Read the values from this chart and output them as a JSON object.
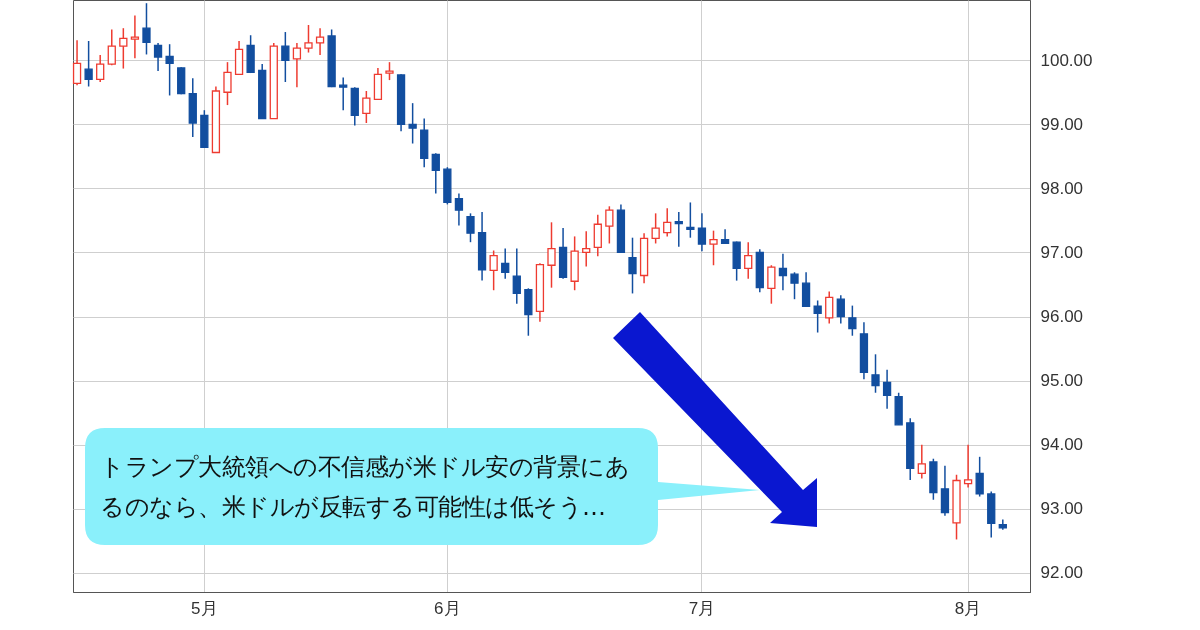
{
  "chart_data": {
    "type": "candlestick",
    "categories": [
      null,
      null,
      null,
      null,
      null,
      null,
      null,
      null,
      null,
      null,
      null,
      "5月",
      null,
      null,
      null,
      null,
      null,
      null,
      null,
      null,
      null,
      null,
      null,
      null,
      null,
      null,
      null,
      null,
      null,
      null,
      null,
      null,
      "6月",
      null,
      null,
      null,
      null,
      null,
      null,
      null,
      null,
      null,
      null,
      null,
      null,
      null,
      null,
      null,
      null,
      null,
      null,
      null,
      null,
      null,
      "7月",
      null,
      null,
      null,
      null,
      null,
      null,
      null,
      null,
      null,
      null,
      null,
      null,
      null,
      null,
      null,
      null,
      null,
      null,
      null,
      null,
      null,
      null,
      "8月",
      null,
      null,
      null
    ],
    "ohlc": [
      [
        99.64,
        100.31,
        99.61,
        99.95
      ],
      [
        99.86,
        100.3,
        99.59,
        99.7
      ],
      [
        99.7,
        100.08,
        99.66,
        99.94
      ],
      [
        99.94,
        100.48,
        99.92,
        100.22
      ],
      [
        100.22,
        100.5,
        99.87,
        100.34
      ],
      [
        100.33,
        100.7,
        100.03,
        100.36
      ],
      [
        100.5,
        100.89,
        100.09,
        100.28
      ],
      [
        100.23,
        100.27,
        99.83,
        100.05
      ],
      [
        100.06,
        100.25,
        99.45,
        99.95
      ],
      [
        99.88,
        99.89,
        99.47,
        99.48
      ],
      [
        99.48,
        99.72,
        98.8,
        99.02
      ],
      [
        99.14,
        99.22,
        98.63,
        98.64
      ],
      [
        98.56,
        99.59,
        98.56,
        99.52
      ],
      [
        99.5,
        99.97,
        99.3,
        99.81
      ],
      [
        99.78,
        100.3,
        99.77,
        100.17
      ],
      [
        100.23,
        100.39,
        99.8,
        99.81
      ],
      [
        99.84,
        99.94,
        99.09,
        99.09
      ],
      [
        99.09,
        100.27,
        99.09,
        100.22
      ],
      [
        100.22,
        100.44,
        99.66,
        100.0
      ],
      [
        100.02,
        100.27,
        99.58,
        100.19
      ],
      [
        100.19,
        100.55,
        100.12,
        100.27
      ],
      [
        100.27,
        100.5,
        100.08,
        100.36
      ],
      [
        100.38,
        100.48,
        99.58,
        99.59
      ],
      [
        99.61,
        99.73,
        99.22,
        99.58
      ],
      [
        99.56,
        99.58,
        98.98,
        99.14
      ],
      [
        99.17,
        99.52,
        99.02,
        99.41
      ],
      [
        99.39,
        99.88,
        99.38,
        99.78
      ],
      [
        99.8,
        99.97,
        99.69,
        99.83
      ],
      [
        99.77,
        99.78,
        98.89,
        99.0
      ],
      [
        99.0,
        99.33,
        98.7,
        98.94
      ],
      [
        98.91,
        99.09,
        98.33,
        98.47
      ],
      [
        98.53,
        98.55,
        97.92,
        98.28
      ],
      [
        98.3,
        98.33,
        97.75,
        97.78
      ],
      [
        97.84,
        97.92,
        97.42,
        97.66
      ],
      [
        97.56,
        97.61,
        97.16,
        97.3
      ],
      [
        97.31,
        97.63,
        96.56,
        96.73
      ],
      [
        96.72,
        97.03,
        96.41,
        96.95
      ],
      [
        96.83,
        97.06,
        96.59,
        96.69
      ],
      [
        96.63,
        97.06,
        96.2,
        96.36
      ],
      [
        96.42,
        96.44,
        95.7,
        96.03
      ],
      [
        96.08,
        96.83,
        95.92,
        96.81
      ],
      [
        96.8,
        97.47,
        96.45,
        97.06
      ],
      [
        97.08,
        97.38,
        96.59,
        96.61
      ],
      [
        96.55,
        97.25,
        96.41,
        97.02
      ],
      [
        97.0,
        97.33,
        96.78,
        97.06
      ],
      [
        97.08,
        97.59,
        96.94,
        97.44
      ],
      [
        97.41,
        97.72,
        97.14,
        97.66
      ],
      [
        97.66,
        97.75,
        97.0,
        97.0
      ],
      [
        96.92,
        97.23,
        96.36,
        96.67
      ],
      [
        96.64,
        97.3,
        96.52,
        97.22
      ],
      [
        97.22,
        97.61,
        97.14,
        97.38
      ],
      [
        97.31,
        97.69,
        97.25,
        97.47
      ],
      [
        97.48,
        97.63,
        97.09,
        97.45
      ],
      [
        97.39,
        97.78,
        97.23,
        97.36
      ],
      [
        97.38,
        97.61,
        97.02,
        97.13
      ],
      [
        97.13,
        97.34,
        96.8,
        97.2
      ],
      [
        97.2,
        97.36,
        97.14,
        97.14
      ],
      [
        97.16,
        97.17,
        96.56,
        96.75
      ],
      [
        96.75,
        97.16,
        96.59,
        96.95
      ],
      [
        97.0,
        97.05,
        96.38,
        96.45
      ],
      [
        96.44,
        96.8,
        96.2,
        96.77
      ],
      [
        96.75,
        96.98,
        96.41,
        96.64
      ],
      [
        96.66,
        96.69,
        96.27,
        96.52
      ],
      [
        96.52,
        96.69,
        96.16,
        96.16
      ],
      [
        96.16,
        96.25,
        95.75,
        96.05
      ],
      [
        95.98,
        96.39,
        95.89,
        96.3
      ],
      [
        96.27,
        96.33,
        95.89,
        96.0
      ],
      [
        95.98,
        96.17,
        95.7,
        95.81
      ],
      [
        95.73,
        95.91,
        95.02,
        95.13
      ],
      [
        95.09,
        95.41,
        94.81,
        94.92
      ],
      [
        94.97,
        95.17,
        94.56,
        94.77
      ],
      [
        94.75,
        94.81,
        94.31,
        94.31
      ],
      [
        94.34,
        94.41,
        93.45,
        93.63
      ],
      [
        93.55,
        94.0,
        93.47,
        93.7
      ],
      [
        93.73,
        93.78,
        93.14,
        93.25
      ],
      [
        93.31,
        93.67,
        92.89,
        92.94
      ],
      [
        92.78,
        93.53,
        92.52,
        93.44
      ],
      [
        93.39,
        94.0,
        93.33,
        93.45
      ],
      [
        93.55,
        93.81,
        93.19,
        93.23
      ],
      [
        93.23,
        93.27,
        92.55,
        92.77
      ],
      [
        92.75,
        92.83,
        92.67,
        92.7
      ]
    ],
    "colors": [
      "#ee3b30",
      "#124e9f",
      "#ee3b30",
      "#ee3b30",
      "#ee3b30",
      "#ee3b30",
      "#124e9f",
      "#124e9f",
      "#124e9f",
      "#124e9f",
      "#124e9f",
      "#124e9f",
      "#ee3b30",
      "#ee3b30",
      "#ee3b30",
      "#124e9f",
      "#124e9f",
      "#ee3b30",
      "#124e9f",
      "#ee3b30",
      "#ee3b30",
      "#ee3b30",
      "#124e9f",
      "#124e9f",
      "#124e9f",
      "#ee3b30",
      "#ee3b30",
      "#ee3b30",
      "#124e9f",
      "#124e9f",
      "#124e9f",
      "#124e9f",
      "#124e9f",
      "#124e9f",
      "#124e9f",
      "#124e9f",
      "#ee3b30",
      "#124e9f",
      "#124e9f",
      "#124e9f",
      "#ee3b30",
      "#ee3b30",
      "#124e9f",
      "#ee3b30",
      "#ee3b30",
      "#ee3b30",
      "#ee3b30",
      "#124e9f",
      "#124e9f",
      "#ee3b30",
      "#ee3b30",
      "#ee3b30",
      "#124e9f",
      "#124e9f",
      "#124e9f",
      "#ee3b30",
      "#124e9f",
      "#124e9f",
      "#ee3b30",
      "#124e9f",
      "#ee3b30",
      "#124e9f",
      "#124e9f",
      "#124e9f",
      "#124e9f",
      "#ee3b30",
      "#124e9f",
      "#124e9f",
      "#124e9f",
      "#124e9f",
      "#124e9f",
      "#124e9f",
      "#124e9f",
      "#ee3b30",
      "#124e9f",
      "#124e9f",
      "#ee3b30",
      "#ee3b30",
      "#124e9f",
      "#124e9f",
      "#124e9f"
    ],
    "ylim": [
      91.7,
      100.94
    ],
    "yticks": [
      {
        "value": 92,
        "label": "92.00"
      },
      {
        "value": 93,
        "label": "93.00"
      },
      {
        "value": 94,
        "label": "94.00"
      },
      {
        "value": 95,
        "label": "95.00"
      },
      {
        "value": 96,
        "label": "96.00"
      },
      {
        "value": 97,
        "label": "97.00"
      },
      {
        "value": 98,
        "label": "98.00"
      },
      {
        "value": 99,
        "label": "99.00"
      },
      {
        "value": 100,
        "label": "100.00"
      }
    ],
    "grid": true,
    "annotations": [
      "トランプ大統領への不信感が米ドル安の背景にあるのなら、米ドルが反転する可能性は低そう…"
    ]
  }
}
